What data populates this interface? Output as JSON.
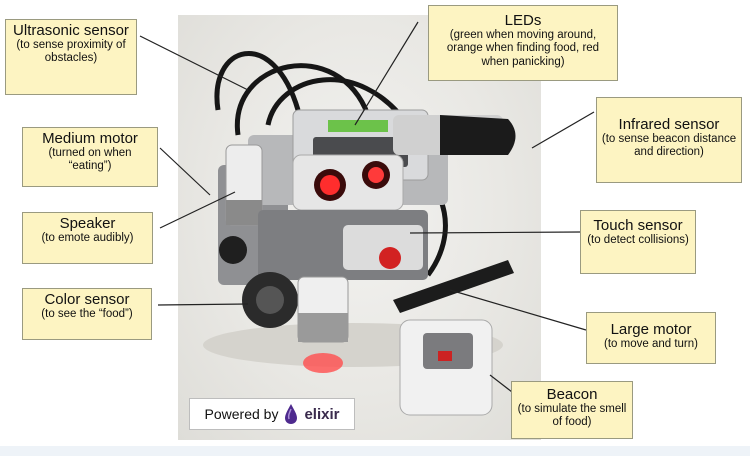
{
  "callouts": {
    "ultrasonic": {
      "title": "Ultrasonic sensor",
      "desc": "(to sense proximity of obstacles)"
    },
    "medium_motor": {
      "title": "Medium motor",
      "desc": "(turned on when “eating”)"
    },
    "speaker": {
      "title": "Speaker",
      "desc": "(to emote audibly)"
    },
    "color_sensor": {
      "title": "Color sensor",
      "desc": "(to see the  “food”)"
    },
    "leds": {
      "title": "LEDs",
      "desc": "(green when moving around, orange when finding food, red when panicking)"
    },
    "infrared": {
      "title": "Infrared sensor",
      "desc": "(to sense beacon distance and direction)"
    },
    "touch": {
      "title": "Touch sensor",
      "desc": "(to detect collisions)"
    },
    "large_motor": {
      "title": "Large motor",
      "desc": "(to move and turn)"
    },
    "beacon": {
      "title": "Beacon",
      "desc": "(to simulate the smell of food)"
    }
  },
  "badge": {
    "prefix": "Powered by",
    "brand": "elixir"
  },
  "colors": {
    "callout_bg": "#fdf4c2",
    "elixir_purple": "#4e2a8e",
    "led_red": "#e02020"
  }
}
